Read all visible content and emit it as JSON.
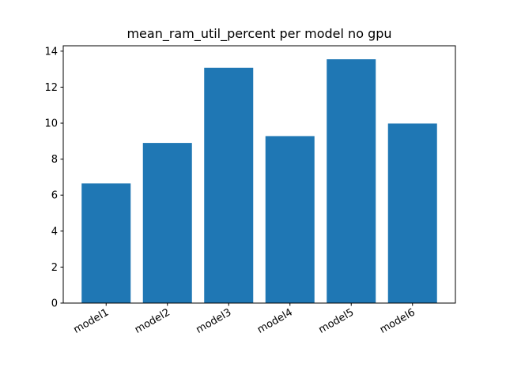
{
  "colors": {
    "bar": "#1f77b4",
    "axis": "#000000",
    "background": "#ffffff"
  },
  "chart_data": {
    "type": "bar",
    "title": "mean_ram_util_percent per model no gpu",
    "xlabel": "",
    "ylabel": "",
    "categories": [
      "model1",
      "model2",
      "model3",
      "model4",
      "model5",
      "model6"
    ],
    "values": [
      6.65,
      8.9,
      13.08,
      9.28,
      13.55,
      9.98
    ],
    "ylim": [
      0,
      14.3
    ],
    "yticks": [
      0,
      2,
      4,
      6,
      8,
      10,
      12,
      14
    ],
    "xtick_rotation": "30 degrees, right-aligned",
    "grid": false,
    "legend": "none"
  }
}
